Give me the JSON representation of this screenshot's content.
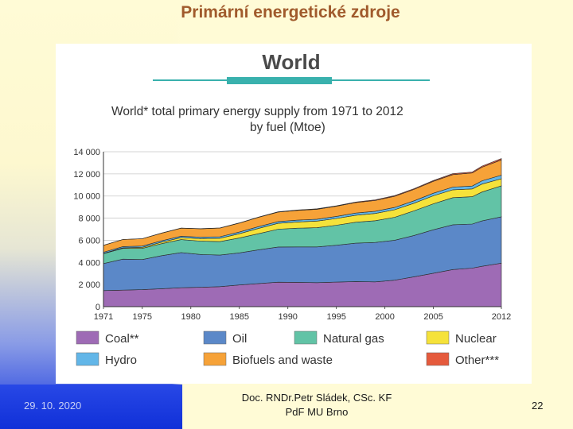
{
  "slide": {
    "title": "Primární energetické zdroje",
    "footer_date": "29. 10. 2020",
    "footer_author_line1": "Doc. RNDr.Petr Sládek, CSc. KF",
    "footer_author_line2": "PdF MU Brno",
    "page_number": "22"
  },
  "chart_data": {
    "type": "area",
    "header": "World",
    "title": "World* total primary energy supply from 1971 to 2012",
    "subtitle": "by fuel (Mtoe)",
    "ylim": [
      0,
      14000
    ],
    "yticks": [
      0,
      2000,
      4000,
      6000,
      8000,
      10000,
      12000,
      14000
    ],
    "ytick_labels": [
      "0",
      "2 000",
      "4 000",
      "6 000",
      "8 000",
      "10 000",
      "12 000",
      "14 000"
    ],
    "xlim": [
      1971,
      2012
    ],
    "xticks": [
      1971,
      1975,
      1980,
      1985,
      1990,
      1995,
      2000,
      2005,
      2012
    ],
    "xtick_labels": [
      "1971",
      "1975",
      "1980",
      "1985",
      "1990",
      "1995",
      "2000",
      "2005",
      "2012"
    ],
    "grid": true,
    "x": [
      1971,
      1973,
      1975,
      1977,
      1979,
      1981,
      1983,
      1985,
      1987,
      1989,
      1991,
      1993,
      1995,
      1997,
      1999,
      2001,
      2003,
      2005,
      2007,
      2009,
      2010,
      2012
    ],
    "series": [
      {
        "name": "Coal**",
        "color": "#9e6bb5",
        "values": [
          1450,
          1490,
          1540,
          1620,
          1710,
          1750,
          1810,
          1960,
          2090,
          2210,
          2200,
          2170,
          2220,
          2270,
          2240,
          2390,
          2700,
          3020,
          3350,
          3480,
          3650,
          3930
        ]
      },
      {
        "name": "Oil",
        "color": "#5b88c8",
        "values": [
          2440,
          2800,
          2720,
          2990,
          3180,
          2970,
          2850,
          2900,
          3050,
          3180,
          3200,
          3230,
          3330,
          3470,
          3560,
          3610,
          3730,
          3930,
          4050,
          3990,
          4100,
          4190
        ]
      },
      {
        "name": "Natural gas",
        "color": "#62c3a6",
        "values": [
          900,
          980,
          1010,
          1080,
          1170,
          1200,
          1220,
          1340,
          1460,
          1610,
          1690,
          1740,
          1810,
          1890,
          1970,
          2080,
          2230,
          2350,
          2450,
          2470,
          2610,
          2800
        ]
      },
      {
        "name": "Nuclear",
        "color": "#f5e23a",
        "values": [
          30,
          50,
          90,
          140,
          180,
          230,
          300,
          390,
          480,
          530,
          560,
          590,
          610,
          630,
          650,
          680,
          690,
          720,
          710,
          700,
          720,
          640
        ]
      },
      {
        "name": "Hydro",
        "color": "#62b6e8",
        "values": [
          100,
          110,
          120,
          125,
          130,
          135,
          140,
          150,
          155,
          160,
          170,
          175,
          185,
          195,
          200,
          205,
          210,
          230,
          245,
          260,
          290,
          320
        ]
      },
      {
        "name": "Biofuels and waste",
        "color": "#f6a238",
        "values": [
          620,
          640,
          660,
          690,
          720,
          750,
          780,
          810,
          840,
          860,
          880,
          900,
          920,
          950,
          980,
          1010,
          1040,
          1080,
          1130,
          1180,
          1230,
          1380
        ]
      },
      {
        "name": "Other***",
        "color": "#e55a3c",
        "values": [
          6,
          7,
          8,
          10,
          12,
          14,
          16,
          20,
          25,
          30,
          35,
          40,
          45,
          50,
          55,
          60,
          65,
          70,
          80,
          90,
          100,
          120
        ]
      }
    ],
    "legend_placement": "bottom",
    "legend": [
      {
        "label": "Coal**",
        "color": "#9e6bb5"
      },
      {
        "label": "Oil",
        "color": "#5b88c8"
      },
      {
        "label": "Natural gas",
        "color": "#62c3a6"
      },
      {
        "label": "Nuclear",
        "color": "#f5e23a"
      },
      {
        "label": "Hydro",
        "color": "#62b6e8"
      },
      {
        "label": "Biofuels and waste",
        "color": "#f6a238"
      },
      {
        "label": "Other***",
        "color": "#e55a3c"
      }
    ]
  }
}
